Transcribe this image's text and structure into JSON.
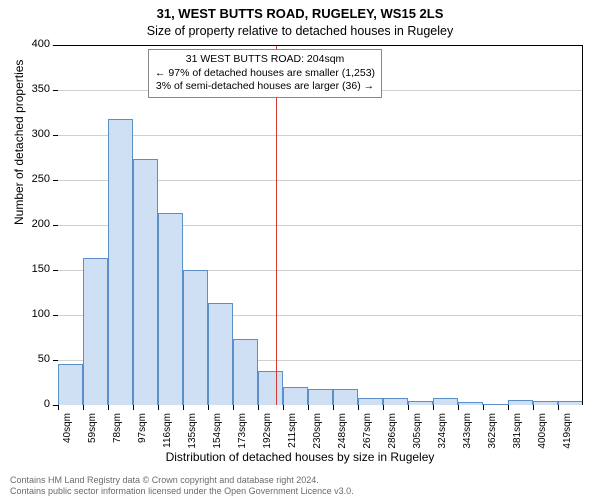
{
  "title_main": "31, WEST BUTTS ROAD, RUGELEY, WS15 2LS",
  "title_sub": "Size of property relative to detached houses in Rugeley",
  "ylabel": "Number of detached properties",
  "xlabel": "Distribution of detached houses by size in Rugeley",
  "footer_line1": "Contains HM Land Registry data © Crown copyright and database right 2024.",
  "footer_line2": "Contains public sector information licensed under the Open Government Licence v3.0.",
  "annotation": {
    "line1": "31 WEST BUTTS ROAD: 204sqm",
    "line2": "← 97% of detached houses are smaller (1,253)",
    "line3": "3% of semi-detached houses are larger (36) →"
  },
  "chart": {
    "type": "histogram",
    "ylim": [
      0,
      400
    ],
    "ytick_step": 50,
    "background_color": "#ffffff",
    "grid_color": "#d0d0d0",
    "bar_fill": "#cfe0f4",
    "bar_stroke": "#5b8fc7",
    "ref_line_color": "#d43a2f",
    "ref_value_x_index": 8.7,
    "x_labels": [
      "40sqm",
      "59sqm",
      "78sqm",
      "97sqm",
      "116sqm",
      "135sqm",
      "154sqm",
      "173sqm",
      "192sqm",
      "211sqm",
      "230sqm",
      "248sqm",
      "267sqm",
      "286sqm",
      "305sqm",
      "324sqm",
      "343sqm",
      "362sqm",
      "381sqm",
      "400sqm",
      "419sqm"
    ],
    "values": [
      46,
      163,
      318,
      273,
      213,
      150,
      113,
      73,
      38,
      20,
      18,
      18,
      8,
      8,
      5,
      8,
      3,
      1,
      6,
      4,
      4
    ],
    "title_fontsize": 13,
    "label_fontsize": 12,
    "tick_fontsize": 11,
    "annotation_fontsize": 10.5
  }
}
